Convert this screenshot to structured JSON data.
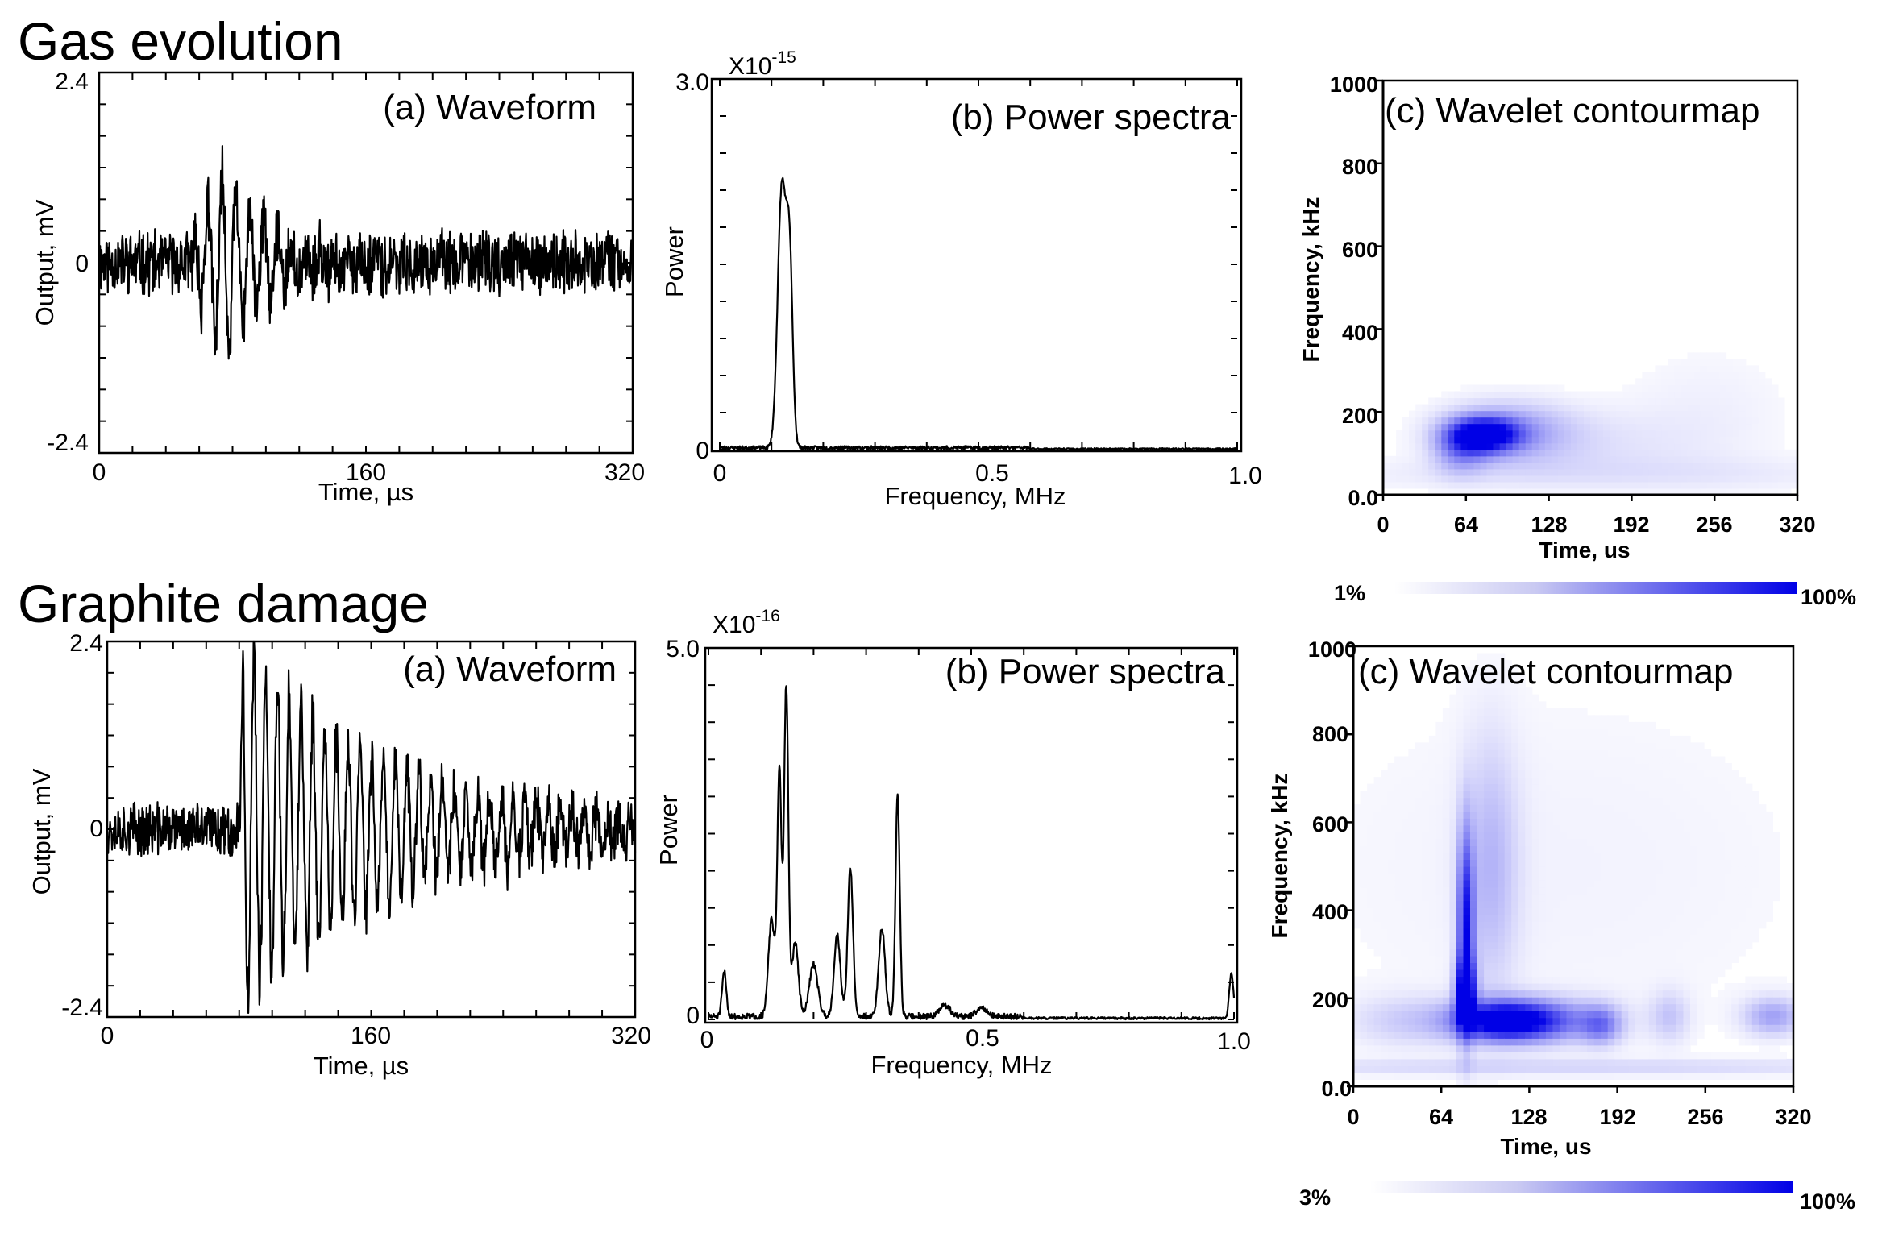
{
  "rows": [
    {
      "section_title": "Gas evolution",
      "waveform": {
        "title": "(a) Waveform",
        "ylabel": "Output, mV",
        "xlabel": "Time, µs",
        "xlim": [
          0,
          320
        ],
        "ylim": [
          -2.4,
          2.4
        ],
        "x_ticks": [
          0,
          160,
          320
        ],
        "y_ticks": [
          "-2.4",
          "0",
          "2.4"
        ]
      },
      "spectrum": {
        "title": "(b) Power spectra",
        "ylabel": "Power",
        "xlabel": "Frequency, MHz",
        "exponent_label": "X10",
        "exponent": "-15",
        "xlim": [
          0,
          1.0
        ],
        "ylim": [
          0,
          3.0
        ],
        "x_ticks": [
          "0",
          "0.5",
          "1.0"
        ],
        "y_ticks": [
          "0",
          "3.0"
        ]
      },
      "wavelet": {
        "title": "(c) Wavelet contourmap",
        "ylabel": "Frequency, kHz",
        "xlabel": "Time, us",
        "xlim": [
          0,
          320
        ],
        "ylim": [
          0,
          1000
        ],
        "x_ticks": [
          "0",
          "64",
          "128",
          "192",
          "256",
          "320"
        ],
        "y_ticks": [
          "0.0",
          "200",
          "400",
          "600",
          "800",
          "1000"
        ],
        "colorbar_min": "1%",
        "colorbar_max": "100%"
      }
    },
    {
      "section_title": "Graphite damage",
      "waveform": {
        "title": "(a) Waveform",
        "ylabel": "Output, mV",
        "xlabel": "Time, µs",
        "xlim": [
          0,
          320
        ],
        "ylim": [
          -2.4,
          2.4
        ],
        "x_ticks": [
          0,
          160,
          320
        ],
        "y_ticks": [
          "-2.4",
          "0",
          "2.4"
        ]
      },
      "spectrum": {
        "title": "(b) Power spectra",
        "ylabel": "Power",
        "xlabel": "Frequency, MHz",
        "exponent_label": "X10",
        "exponent": "-16",
        "xlim": [
          0,
          1.0
        ],
        "ylim": [
          0,
          5.0
        ],
        "x_ticks": [
          "0",
          "0.5",
          "1.0"
        ],
        "y_ticks": [
          "0",
          "5.0"
        ]
      },
      "wavelet": {
        "title": "(c) Wavelet contourmap",
        "ylabel": "Frequency, kHz",
        "xlabel": "Time, us",
        "xlim": [
          0,
          320
        ],
        "ylim": [
          0,
          1000
        ],
        "x_ticks": [
          "0",
          "64",
          "128",
          "192",
          "256",
          "320"
        ],
        "y_ticks": [
          "0.0",
          "200",
          "400",
          "600",
          "800",
          "1000"
        ],
        "colorbar_min": "3%",
        "colorbar_max": "100%"
      }
    }
  ],
  "chart_data": [
    {
      "type": "line",
      "panel": "Gas evolution (a) Waveform",
      "title": "(a) Waveform",
      "xlabel": "Time, µs",
      "ylabel": "Output, mV",
      "xlim": [
        0,
        320
      ],
      "ylim": [
        -2.4,
        2.4
      ],
      "series": [
        {
          "name": "waveform",
          "noise_amplitude": 0.35,
          "bursts": [
            {
              "onset": 55,
              "amplitude": 2.1,
              "frequency_mhz": 0.12,
              "decay_us": 30,
              "rise_us": 22
            }
          ]
        }
      ]
    },
    {
      "type": "line",
      "panel": "Gas evolution (b) Power spectra",
      "title": "(b) Power spectra",
      "xlabel": "Frequency, MHz",
      "ylabel": "Power",
      "xlim": [
        0,
        1.0
      ],
      "ylim": [
        0,
        3.0
      ],
      "y_scale": "X10^-15",
      "series": [
        {
          "name": "spectrum",
          "noise_level": 0.03,
          "peaks": [
            {
              "f": 0.12,
              "height": 2.1,
              "width": 0.008
            },
            {
              "f": 0.135,
              "height": 1.45,
              "width": 0.006
            }
          ]
        }
      ]
    },
    {
      "type": "heatmap",
      "panel": "Gas evolution (c) Wavelet contourmap",
      "title": "(c) Wavelet contourmap",
      "xlabel": "Time, us",
      "ylabel": "Frequency, kHz",
      "xlim": [
        0,
        320
      ],
      "ylim": [
        0,
        1000
      ],
      "colorbar": [
        "1%",
        "100%"
      ],
      "blobs": [
        {
          "t": 78,
          "f": 145,
          "st": 18,
          "sf": 28,
          "a": 1.0
        },
        {
          "t": 95,
          "f": 155,
          "st": 35,
          "sf": 50,
          "a": 0.35
        },
        {
          "t": 60,
          "f": 110,
          "st": 14,
          "sf": 40,
          "a": 0.35
        },
        {
          "t": 150,
          "f": 120,
          "st": 60,
          "sf": 60,
          "a": 0.1
        },
        {
          "t": 160,
          "f": 50,
          "st": 200,
          "sf": 30,
          "a": 0.08
        },
        {
          "t": 250,
          "f": 200,
          "st": 50,
          "sf": 120,
          "a": 0.06
        }
      ]
    },
    {
      "type": "line",
      "panel": "Graphite damage (a) Waveform",
      "title": "(a) Waveform",
      "xlabel": "Time, µs",
      "ylabel": "Output, mV",
      "xlim": [
        0,
        320
      ],
      "ylim": [
        -2.4,
        2.4
      ],
      "series": [
        {
          "name": "waveform",
          "noise_amplitude": 0.3,
          "bursts": [
            {
              "onset": 80,
              "amplitude": 2.3,
              "frequency_mhz": 0.14,
              "decay_us": 90,
              "rise_us": 2
            }
          ]
        }
      ]
    },
    {
      "type": "line",
      "panel": "Graphite damage (b) Power spectra",
      "title": "(b) Power spectra",
      "xlabel": "Frequency, MHz",
      "ylabel": "Power",
      "xlim": [
        0,
        1.0
      ],
      "ylim": [
        0,
        5.0
      ],
      "y_scale": "X10^-16",
      "series": [
        {
          "name": "spectrum",
          "noise_level": 0.08,
          "peaks": [
            {
              "f": 0.03,
              "height": 0.6,
              "width": 0.004
            },
            {
              "f": 0.12,
              "height": 1.3,
              "width": 0.006
            },
            {
              "f": 0.135,
              "height": 3.3,
              "width": 0.004
            },
            {
              "f": 0.148,
              "height": 4.45,
              "width": 0.004
            },
            {
              "f": 0.165,
              "height": 1.0,
              "width": 0.006
            },
            {
              "f": 0.2,
              "height": 0.7,
              "width": 0.008
            },
            {
              "f": 0.245,
              "height": 1.1,
              "width": 0.006
            },
            {
              "f": 0.27,
              "height": 2.0,
              "width": 0.005
            },
            {
              "f": 0.33,
              "height": 1.2,
              "width": 0.006
            },
            {
              "f": 0.36,
              "height": 3.0,
              "width": 0.004
            },
            {
              "f": 0.45,
              "height": 0.15,
              "width": 0.01
            },
            {
              "f": 0.52,
              "height": 0.12,
              "width": 0.01
            },
            {
              "f": 0.995,
              "height": 0.6,
              "width": 0.004
            }
          ]
        }
      ]
    },
    {
      "type": "heatmap",
      "panel": "Graphite damage (c) Wavelet contourmap",
      "title": "(c) Wavelet contourmap",
      "xlabel": "Time, us",
      "ylabel": "Frequency, kHz",
      "xlim": [
        0,
        320
      ],
      "ylim": [
        0,
        1000
      ],
      "colorbar": [
        "3%",
        "100%"
      ],
      "blobs": [
        {
          "t": 82,
          "f": 360,
          "st": 4,
          "sf": 150,
          "a": 0.85
        },
        {
          "t": 82,
          "f": 220,
          "st": 5,
          "sf": 50,
          "a": 0.9
        },
        {
          "t": 110,
          "f": 150,
          "st": 25,
          "sf": 30,
          "a": 0.9
        },
        {
          "t": 100,
          "f": 500,
          "st": 14,
          "sf": 200,
          "a": 0.25
        },
        {
          "t": 135,
          "f": 150,
          "st": 35,
          "sf": 35,
          "a": 0.45
        },
        {
          "t": 180,
          "f": 140,
          "st": 10,
          "sf": 30,
          "a": 0.4
        },
        {
          "t": 230,
          "f": 160,
          "st": 10,
          "sf": 40,
          "a": 0.2
        },
        {
          "t": 305,
          "f": 160,
          "st": 15,
          "sf": 30,
          "a": 0.35
        },
        {
          "t": 40,
          "f": 150,
          "st": 30,
          "sf": 40,
          "a": 0.18
        },
        {
          "t": 160,
          "f": 45,
          "st": 220,
          "sf": 12,
          "a": 0.15
        },
        {
          "t": 150,
          "f": 500,
          "st": 160,
          "sf": 350,
          "a": 0.05
        }
      ]
    }
  ]
}
